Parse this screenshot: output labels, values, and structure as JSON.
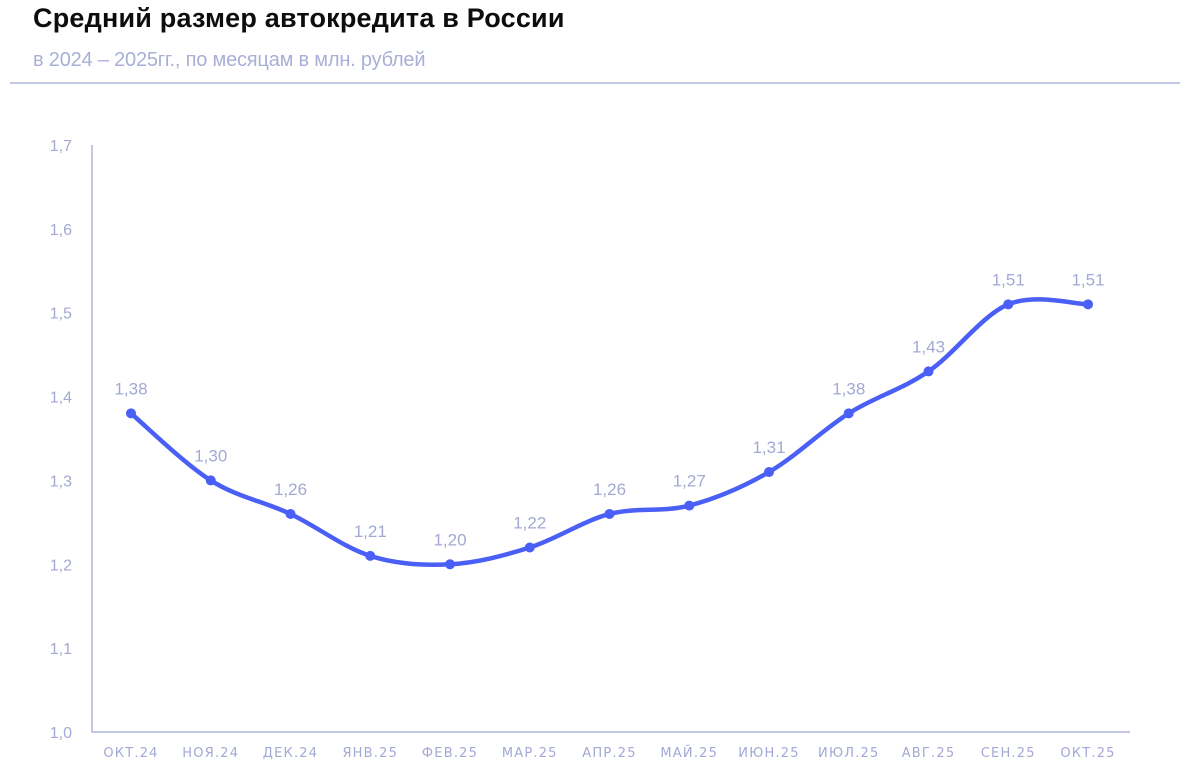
{
  "header": {
    "title": "Средний размер автокредита в России",
    "subtitle": "в 2024 – 2025гг., по месяцам в млн. рублей"
  },
  "colors": {
    "line": "#4a5ff5",
    "axis": "#c3c7e6",
    "tick_text": "#a3a9d4",
    "title": "#0d0d0d",
    "subtitle": "#a9afd6"
  },
  "chart_data": {
    "type": "line",
    "title": "Средний размер автокредита в России",
    "subtitle": "в 2024 – 2025гг., по месяцам в млн. рублей",
    "xlabel": "",
    "ylabel": "",
    "categories": [
      "ОКТ.24",
      "НОЯ.24",
      "ДЕК.24",
      "ЯНВ.25",
      "ФЕВ.25",
      "МАР.25",
      "АПР.25",
      "МАЙ.25",
      "ИЮН.25",
      "ИЮЛ.25",
      "АВГ.25",
      "СЕН.25",
      "ОКТ.25"
    ],
    "series": [
      {
        "name": "Средний размер автокредита, млн. руб.",
        "values": [
          1.38,
          1.3,
          1.26,
          1.21,
          1.2,
          1.22,
          1.26,
          1.27,
          1.31,
          1.38,
          1.43,
          1.51,
          1.51
        ],
        "labels": [
          "1,38",
          "1,30",
          "1,26",
          "1,21",
          "1,20",
          "1,22",
          "1,26",
          "1,27",
          "1,31",
          "1,38",
          "1,43",
          "1,51",
          "1,51"
        ]
      }
    ],
    "ylim": [
      1.0,
      1.7
    ],
    "yticks": [
      "1,0",
      "1,1",
      "1,2",
      "1,3",
      "1,4",
      "1,5",
      "1,6",
      "1,7"
    ],
    "grid": false,
    "legend": "none",
    "smooth": true,
    "markers": true
  }
}
